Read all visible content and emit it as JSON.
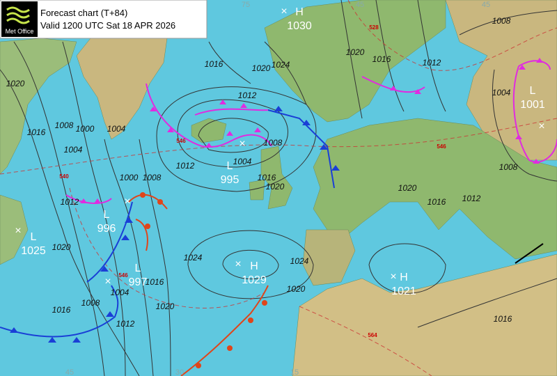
{
  "header": {
    "logo": "Met Office",
    "title": "Forecast chart (T+84)",
    "valid": "Valid 1200 UTC Sat 18 APR 2026"
  },
  "centers": [
    {
      "type": "H",
      "value": "1030"
    },
    {
      "type": "L",
      "value": "1001"
    },
    {
      "type": "L",
      "value": "995"
    },
    {
      "type": "L",
      "value": "996"
    },
    {
      "type": "L",
      "value": "1025"
    },
    {
      "type": "L",
      "value": "997"
    },
    {
      "type": "H",
      "value": "1029"
    },
    {
      "type": "H",
      "value": "1021"
    }
  ],
  "isobar_labels": [
    "1008",
    "1016",
    "1012",
    "1020",
    "1024",
    "1020",
    "1016",
    "1012",
    "1004",
    "1020",
    "1016",
    "1008",
    "1000",
    "1004",
    "1004",
    "1008",
    "1004",
    "1012",
    "1000",
    "1008",
    "1016",
    "1020",
    "1020",
    "1016",
    "1012",
    "1008",
    "1012",
    "1020",
    "1024",
    "1024",
    "1020",
    "1016",
    "1004",
    "1008",
    "1016",
    "1012",
    "1020",
    "1016"
  ],
  "thickness_labels": [
    "528",
    "546",
    "540",
    "546",
    "546",
    "564"
  ],
  "grid_labels": [
    "75",
    "45",
    "45",
    "45",
    "30",
    "15"
  ]
}
